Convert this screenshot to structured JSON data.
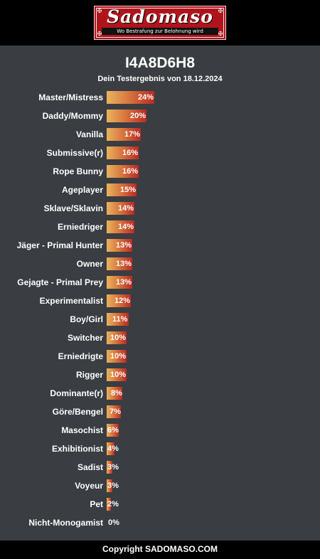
{
  "header": {
    "logo_text": "Sadomaso",
    "logo_tagline": "Wo Bestrafung zur Belohnung wird"
  },
  "chart_data": {
    "type": "bar",
    "orientation": "horizontal",
    "title": "I4A8D6H8",
    "subtitle": "Dein Testergebnis von 18.12.2024",
    "categories": [
      "Master/Mistress",
      "Daddy/Mommy",
      "Vanilla",
      "Submissive(r)",
      "Rope Bunny",
      "Ageplayer",
      "Sklave/Sklavin",
      "Erniedriger",
      "Jäger - Primal Hunter",
      "Owner",
      "Gejagte - Primal Prey",
      "Experimentalist",
      "Boy/Girl",
      "Switcher",
      "Erniedrigte",
      "Rigger",
      "Dominante(r)",
      "Göre/Bengel",
      "Masochist",
      "Exhibitionist",
      "Sadist",
      "Voyeur",
      "Pet",
      "Nicht-Monogamist"
    ],
    "values": [
      24,
      20,
      17,
      16,
      16,
      15,
      14,
      14,
      13,
      13,
      13,
      12,
      11,
      10,
      10,
      10,
      8,
      7,
      6,
      4,
      3,
      3,
      2,
      0
    ],
    "value_suffix": "%",
    "xlim": [
      0,
      100
    ],
    "grid": false,
    "legend": "none",
    "colors": {
      "bar_start": "#e9b45e",
      "bar_end": "#b72a22",
      "background": "#3a3d42"
    }
  },
  "footer": {
    "text": "Copyright SADOMASO.COM"
  }
}
